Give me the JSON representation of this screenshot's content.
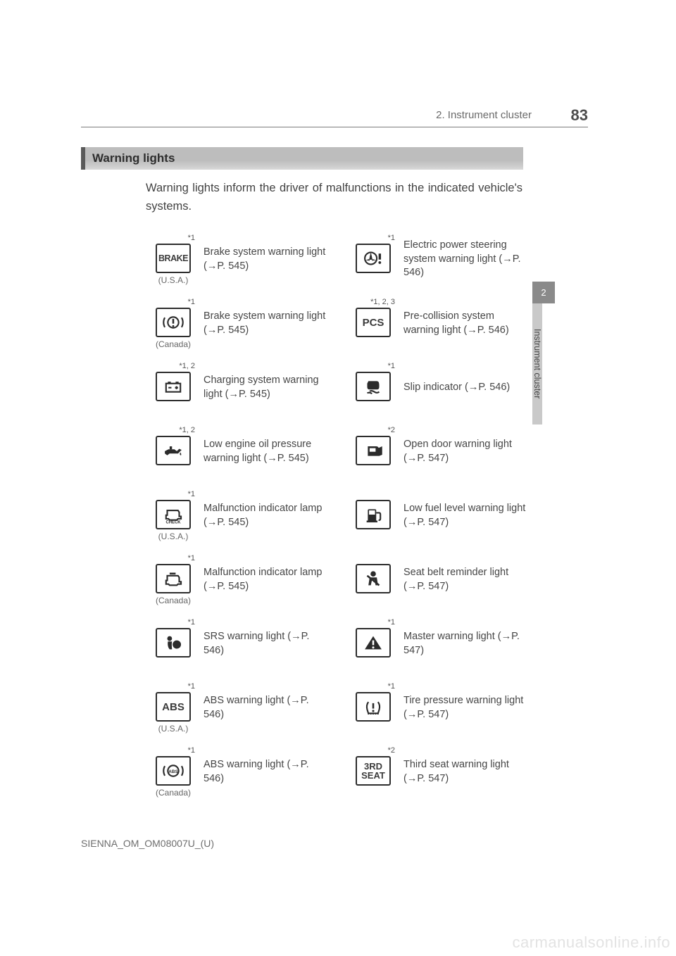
{
  "header": {
    "chapter": "2. Instrument cluster",
    "pagenum": "83"
  },
  "section_title": "Warning lights",
  "intro": "Warning lights inform the driver of malfunctions in the indicated vehicle's systems.",
  "side_tab": {
    "num": "2",
    "label": "Instrument cluster"
  },
  "footer": "SIENNA_OM_OM08007U_(U)",
  "watermark": "carmanualsonline.info",
  "arrow": "→",
  "left_items": [
    {
      "sup": "*1",
      "icon": "brake-text",
      "sub": "(U.S.A.)",
      "text": "Brake system warning light (→P. 545)"
    },
    {
      "sup": "*1",
      "icon": "brake-circle",
      "sub": "(Canada)",
      "text": "Brake system warning light (→P. 545)"
    },
    {
      "sup": "*1, 2",
      "icon": "battery",
      "sub": "",
      "text": "Charging system warning light (→P. 545)"
    },
    {
      "sup": "*1, 2",
      "icon": "oil",
      "sub": "",
      "text": "Low engine oil pressure warning light (→P. 545)"
    },
    {
      "sup": "*1",
      "icon": "check-engine-usa",
      "sub": "(U.S.A.)",
      "text": "Malfunction indicator lamp (→P. 545)"
    },
    {
      "sup": "*1",
      "icon": "check-engine-can",
      "sub": "(Canada)",
      "text": "Malfunction indicator lamp (→P. 545)"
    },
    {
      "sup": "*1",
      "icon": "srs",
      "sub": "",
      "text": "SRS warning light (→P. 546)"
    },
    {
      "sup": "*1",
      "icon": "abs-text",
      "sub": "(U.S.A.)",
      "text": "ABS warning light (→P. 546)"
    },
    {
      "sup": "*1",
      "icon": "abs-circle",
      "sub": "(Canada)",
      "text": "ABS warning light (→P. 546)"
    }
  ],
  "right_items": [
    {
      "sup": "*1",
      "icon": "eps",
      "sub": "",
      "text": "Electric power steering system warning light (→P. 546)"
    },
    {
      "sup": "*1, 2, 3",
      "icon": "pcs",
      "sub": "",
      "text": "Pre-collision system warning light (→P. 546)"
    },
    {
      "sup": "*1",
      "icon": "slip",
      "sub": "",
      "text": "Slip indicator (→P. 546)"
    },
    {
      "sup": "*2",
      "icon": "door",
      "sub": "",
      "text": "Open door warning light (→P. 547)"
    },
    {
      "sup": "",
      "icon": "fuel",
      "sub": "",
      "text": "Low fuel level warning light (→P. 547)"
    },
    {
      "sup": "",
      "icon": "seatbelt",
      "sub": "",
      "text": "Seat belt reminder light (→P. 547)"
    },
    {
      "sup": "*1",
      "icon": "master",
      "sub": "",
      "text": "Master warning light (→P. 547)"
    },
    {
      "sup": "*1",
      "icon": "tire",
      "sub": "",
      "text": "Tire pressure warning light (→P. 547)"
    },
    {
      "sup": "*2",
      "icon": "thirdseat",
      "sub": "",
      "text": "Third seat warning light (→P. 547)"
    }
  ],
  "icon_text": {
    "brake-text": "BRAKE",
    "abs-text": "ABS",
    "pcs": "PCS",
    "thirdseat_l1": "3RD",
    "thirdseat_l2": "SEAT"
  }
}
